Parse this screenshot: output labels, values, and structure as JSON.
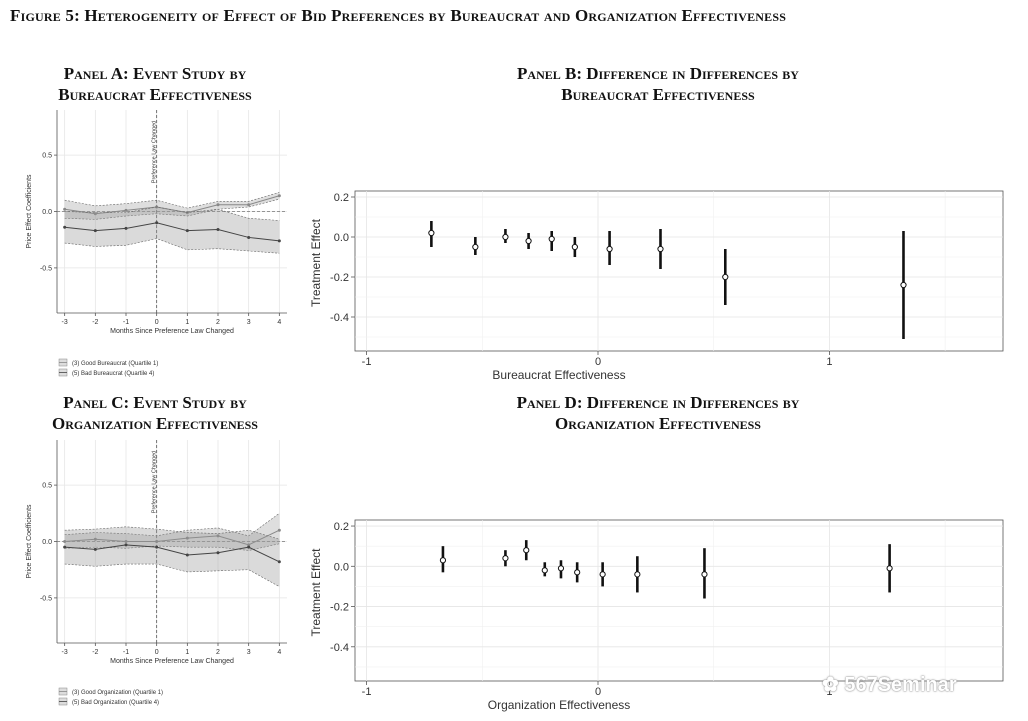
{
  "figure_title": "Figure 5: Heterogeneity of Effect of Bid Preferences by Bureaucrat and Organization Effectiveness",
  "panels": {
    "a": {
      "line1": "Panel A: Event Study by",
      "line2": "Bureaucrat Effectiveness"
    },
    "b": {
      "line1": "Panel B: Difference in Differences by",
      "line2": "Bureaucrat Effectiveness"
    },
    "c": {
      "line1": "Panel C: Event Study by",
      "line2": "Organization Effectiveness"
    },
    "d": {
      "line1": "Panel D: Difference in Differences by",
      "line2": "Organization Effectiveness"
    }
  },
  "watermark": "567Seminar",
  "chart_data": [
    {
      "id": "panel_a",
      "type": "line",
      "xlabel": "Months Since Preference Law Changed",
      "ylabel": "Price Effect Coefficients",
      "vline_label": "Preference Law Changed",
      "x": [
        -3,
        -2,
        -1,
        0,
        1,
        2,
        3,
        4
      ],
      "xlim": [
        -3.25,
        4.25
      ],
      "ylim": [
        -0.9,
        0.9
      ],
      "xticks": [
        "-3",
        "-2",
        "-1",
        "0",
        "1",
        "2",
        "3",
        "4"
      ],
      "yticks": [
        "0.5",
        "0.0",
        "-0.5"
      ],
      "series": [
        {
          "name": "(3) Good Bureaucrat (Quartile 1)",
          "values": [
            0.02,
            -0.02,
            0.01,
            0.04,
            -0.01,
            0.06,
            0.06,
            0.14
          ],
          "lower": [
            -0.06,
            -0.07,
            -0.04,
            -0.02,
            -0.04,
            0.02,
            0.04,
            0.11
          ],
          "upper": [
            0.1,
            0.05,
            0.07,
            0.1,
            0.03,
            0.09,
            0.09,
            0.17
          ]
        },
        {
          "name": "(5) Bad Bureaucrat (Quartile 4)",
          "values": [
            -0.14,
            -0.17,
            -0.15,
            -0.1,
            -0.17,
            -0.16,
            -0.23,
            -0.26
          ],
          "lower": [
            -0.28,
            -0.31,
            -0.3,
            -0.24,
            -0.34,
            -0.33,
            -0.35,
            -0.37
          ],
          "upper": [
            0.0,
            -0.01,
            -0.01,
            0.04,
            -0.01,
            0.02,
            -0.06,
            -0.08
          ]
        }
      ]
    },
    {
      "id": "panel_b",
      "type": "scatter",
      "xlabel": "Bureaucrat Effectiveness",
      "ylabel": "Treatment Effect",
      "xlim": [
        -1.05,
        1.75
      ],
      "ylim": [
        -0.57,
        0.23
      ],
      "xticks": [
        "-1",
        "0",
        "1"
      ],
      "yticks": [
        "0.2",
        "0.0",
        "-0.2",
        "-0.4"
      ],
      "points": [
        {
          "x": -0.72,
          "y": 0.02,
          "lo": -0.05,
          "hi": 0.08
        },
        {
          "x": -0.53,
          "y": -0.05,
          "lo": -0.09,
          "hi": 0.0
        },
        {
          "x": -0.4,
          "y": 0.0,
          "lo": -0.03,
          "hi": 0.04
        },
        {
          "x": -0.3,
          "y": -0.02,
          "lo": -0.06,
          "hi": 0.02
        },
        {
          "x": -0.2,
          "y": -0.01,
          "lo": -0.07,
          "hi": 0.03
        },
        {
          "x": -0.1,
          "y": -0.05,
          "lo": -0.1,
          "hi": 0.0
        },
        {
          "x": 0.05,
          "y": -0.06,
          "lo": -0.14,
          "hi": 0.03
        },
        {
          "x": 0.27,
          "y": -0.06,
          "lo": -0.16,
          "hi": 0.04
        },
        {
          "x": 0.55,
          "y": -0.2,
          "lo": -0.34,
          "hi": -0.06
        },
        {
          "x": 1.32,
          "y": -0.24,
          "lo": -0.51,
          "hi": 0.03
        }
      ]
    },
    {
      "id": "panel_c",
      "type": "line",
      "xlabel": "Months Since Preference Law Changed",
      "ylabel": "Price Effect Coefficients",
      "vline_label": "Preference Law Changed",
      "x": [
        -3,
        -2,
        -1,
        0,
        1,
        2,
        3,
        4
      ],
      "xlim": [
        -3.25,
        4.25
      ],
      "ylim": [
        -0.9,
        0.9
      ],
      "xticks": [
        "-3",
        "-2",
        "-1",
        "0",
        "1",
        "2",
        "3",
        "4"
      ],
      "yticks": [
        "0.5",
        "0.0",
        "-0.5"
      ],
      "series": [
        {
          "name": "(3) Good Organization (Quartile 1)",
          "values": [
            0.0,
            0.02,
            0.0,
            0.0,
            0.03,
            0.05,
            -0.03,
            0.1
          ],
          "lower": [
            -0.06,
            -0.05,
            -0.06,
            -0.04,
            -0.05,
            -0.05,
            -0.08,
            -0.02
          ],
          "upper": [
            0.06,
            0.08,
            0.07,
            0.05,
            0.1,
            0.12,
            0.05,
            0.25
          ]
        },
        {
          "name": "(5) Bad Organization (Quartile 4)",
          "values": [
            -0.05,
            -0.07,
            -0.03,
            -0.05,
            -0.12,
            -0.1,
            -0.05,
            -0.18
          ],
          "lower": [
            -0.2,
            -0.22,
            -0.2,
            -0.2,
            -0.27,
            -0.26,
            -0.25,
            -0.4
          ],
          "upper": [
            0.1,
            0.11,
            0.13,
            0.11,
            0.08,
            0.07,
            0.1,
            0.02
          ]
        }
      ]
    },
    {
      "id": "panel_d",
      "type": "scatter",
      "xlabel": "Organization Effectiveness",
      "ylabel": "Treatment Effect",
      "xlim": [
        -1.05,
        1.75
      ],
      "ylim": [
        -0.57,
        0.23
      ],
      "xticks": [
        "-1",
        "0",
        "1"
      ],
      "yticks": [
        "0.2",
        "0.0",
        "-0.2",
        "-0.4"
      ],
      "points": [
        {
          "x": -0.67,
          "y": 0.03,
          "lo": -0.03,
          "hi": 0.1
        },
        {
          "x": -0.4,
          "y": 0.04,
          "lo": 0.0,
          "hi": 0.08
        },
        {
          "x": -0.31,
          "y": 0.08,
          "lo": 0.03,
          "hi": 0.13
        },
        {
          "x": -0.23,
          "y": -0.02,
          "lo": -0.05,
          "hi": 0.02
        },
        {
          "x": -0.16,
          "y": -0.01,
          "lo": -0.06,
          "hi": 0.03
        },
        {
          "x": -0.09,
          "y": -0.03,
          "lo": -0.08,
          "hi": 0.02
        },
        {
          "x": 0.02,
          "y": -0.04,
          "lo": -0.1,
          "hi": 0.02
        },
        {
          "x": 0.17,
          "y": -0.04,
          "lo": -0.13,
          "hi": 0.05
        },
        {
          "x": 0.46,
          "y": -0.04,
          "lo": -0.16,
          "hi": 0.09
        },
        {
          "x": 1.26,
          "y": -0.01,
          "lo": -0.13,
          "hi": 0.11
        }
      ]
    }
  ]
}
